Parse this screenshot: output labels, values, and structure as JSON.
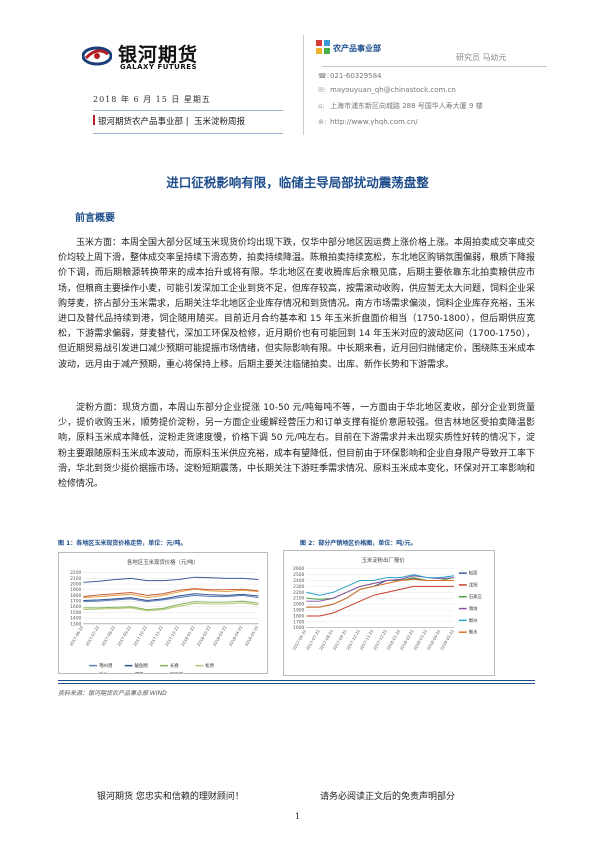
{
  "header": {
    "brand_cn": "银河期货",
    "brand_en": "GALAXY FUTURES",
    "date": "2018 年 6 月 15 日 星期五",
    "department": "银河期货农产品事业部",
    "report_name": "玉米淀粉周报"
  },
  "contact": {
    "unit_name": "农产品事业部",
    "researcher": "研究员  马幼元",
    "phone": "021-60329584",
    "email": "mayouyuan_qh@chinastock.com.cn",
    "address": "上海市浦东新区向城路 288 号国华人寿大厦 9 楼",
    "website": "http://www.yhqh.com.cn/"
  },
  "main": {
    "title": "进口征税影响有限，临储主导局部扰动震荡盘整",
    "section_heading": "前言概要",
    "paragraph1": "玉米方面：本周全国大部分区域玉米现货价均出现下跌，仅华中部分地区因运费上涨价格上涨。本周拍卖成交率成交价均较上周下滑，整体成交率呈持续下滑态势，拍卖持续降温。陈粮拍卖持续宽松，东北地区购销氛围偏弱，粮质下降报价下调，而后期粮源转换带来的成本抬升或将有限。华北地区在麦收腾库后余粮见底，后期主要依靠东北拍卖粮供应市场，但粮商主要操作小麦，可能引发深加工企业到货不足，但库存较高，按需滚动收购，供应暂无太大问题，饲料企业采购芽麦，挤占部分玉米需求，后期关注华北地区企业库存情况和到货情况。南方市场需求偏淡，饲料企业库存充裕，玉米进口及替代品持续到港，饲企随用随买。目前近月合约基本和 15 年玉米折盘面价相当（1750-1800），但后期供应宽松，下游需求偏弱，芽麦替代，深加工环保及检修，近月期价也有可能回到 14 年玉米对应的波动区间（1700-1750），但近期贸易战引发进口减少预期可能提振市场情绪，但实际影响有限。中长期来看，近月回归抛储定价，围绕陈玉米成本波动，远月由于减产预期，重心将保持上移。后期主要关注临储拍卖、出库、新作长势和下游需求。",
    "paragraph2": "淀粉方面：现货方面，本周山东部分企业提涨 10-50 元/吨每吨不等，一方面由于华北地区麦收，部分企业到货量少，提价收购玉米，顺势提价淀粉，另一方面企业缓解经营压力和订单支撑有挺价意愿较强。但吉林地区受拍卖降温影响，原料玉米成本降低，淀粉走货速度慢，价格下调 50 元/吨左右。目前在下游需求并未出现实质性好转的情况下，淀粉主要跟随原料玉米成本波动，而原料玉米供应充裕，成本有望降低，但目前由于环保影响和企业自身限产导致开工率下滑，华北到货少挺价据振市场，淀粉短期震荡，中长期关注下游旺季需求情况、原料玉米成本变化，环保对开工率影响和检修情况。"
  },
  "figures": {
    "fig1_caption": "图 1：各地区玉米现货价格走势，单位：元/吨。",
    "fig2_caption": "图 2：部分产销地区价格图，单位：吨/元。",
    "source": "资料来源：银河期货农产品事业部 WIND"
  },
  "chart_data": [
    {
      "type": "line",
      "title": "各地区玉米现货价格（元/吨）",
      "x": [
        "2017-06-22",
        "2017-07-22",
        "2017-08-22",
        "2017-09-22",
        "2017-10-22",
        "2017-11-22",
        "2017-12-22",
        "2018-01-22",
        "2018-02-22",
        "2018-03-22",
        "2018-04-22",
        "2018-05-22"
      ],
      "ylim": [
        1300,
        2200
      ],
      "yticks": [
        1300,
        1400,
        1500,
        1600,
        1700,
        1800,
        1900,
        2000,
        2100,
        2200
      ],
      "series": [
        {
          "name": "锦州港",
          "color": "#5b7fb9",
          "values": [
            1690,
            1700,
            1720,
            1740,
            1690,
            1720,
            1760,
            1800,
            1780,
            1780,
            1800,
            1760
          ]
        },
        {
          "name": "鲅鱼圈",
          "color": "#2f4f8f",
          "values": [
            1710,
            1720,
            1740,
            1760,
            1710,
            1740,
            1790,
            1830,
            1810,
            1800,
            1820,
            1790
          ]
        },
        {
          "name": "长春",
          "color": "#7fb05a",
          "values": [
            1580,
            1580,
            1590,
            1600,
            1550,
            1570,
            1640,
            1690,
            1680,
            1680,
            1700,
            1660
          ]
        },
        {
          "name": "松原",
          "color": "#b4c972",
          "values": [
            1550,
            1560,
            1570,
            1580,
            1530,
            1550,
            1610,
            1660,
            1650,
            1650,
            1670,
            1630
          ]
        },
        {
          "name": "潍坊",
          "color": "#e0a040",
          "values": [
            1760,
            1780,
            1800,
            1820,
            1760,
            1800,
            1860,
            1910,
            1880,
            1870,
            1890,
            1870
          ]
        },
        {
          "name": "成都",
          "color": "#3a5a9a",
          "values": [
            2030,
            2050,
            2080,
            2100,
            2060,
            2060,
            2080,
            2120,
            2110,
            2100,
            2100,
            2080
          ]
        },
        {
          "name": "蛇口港",
          "color": "#c85a3a",
          "values": [
            1780,
            1810,
            1830,
            1850,
            1800,
            1830,
            1890,
            1920,
            1900,
            1900,
            1910,
            1880
          ]
        }
      ]
    },
    {
      "type": "line",
      "title": "玉米淀粉出厂报价",
      "x": [
        "2017-06-22",
        "2017-07-22",
        "2017-08-22",
        "2017-09-22",
        "2017-10-22",
        "2017-11-22",
        "2017-12-22",
        "2018-01-22",
        "2018-02-22",
        "2018-03-22",
        "2018-04-22",
        "2018-05-22"
      ],
      "ylim": [
        1600,
        2600
      ],
      "yticks": [
        1600,
        1700,
        1800,
        1900,
        2000,
        2100,
        2200,
        2300,
        2400,
        2500,
        2600
      ],
      "series": [
        {
          "name": "松原",
          "color": "#3a5a9a",
          "values": [
            1950,
            1950,
            2000,
            2100,
            2250,
            2300,
            2400,
            2400,
            2430,
            2400,
            2400,
            2400
          ]
        },
        {
          "name": "沈阳",
          "color": "#c83a2a",
          "values": [
            1800,
            1800,
            1850,
            1950,
            2050,
            2150,
            2200,
            2250,
            2300,
            2300,
            2300,
            2300
          ]
        },
        {
          "name": "石家庄",
          "color": "#4aa04a",
          "values": [
            2100,
            2080,
            2100,
            2200,
            2300,
            2350,
            2400,
            2400,
            2450,
            2400,
            2400,
            2450
          ]
        },
        {
          "name": "潍坊",
          "color": "#8a4fa0",
          "values": [
            2050,
            2050,
            2100,
            2200,
            2300,
            2350,
            2400,
            2420,
            2480,
            2450,
            2430,
            2450
          ]
        },
        {
          "name": "邯州",
          "color": "#2aa0c8",
          "values": [
            2200,
            2150,
            2200,
            2300,
            2400,
            2400,
            2450,
            2450,
            2500,
            2450,
            2450,
            2480
          ]
        },
        {
          "name": "衡水",
          "color": "#e07020",
          "values": [
            1950,
            1950,
            2000,
            2100,
            2250,
            2300,
            2350,
            2400,
            2420,
            2400,
            2400,
            2400
          ]
        }
      ]
    }
  ],
  "footer": {
    "slogan_left": "银河期货  您忠实和信赖的理财顾问！",
    "slogan_right": "请务必阅读正文后的免责声明部分",
    "page_number": "1"
  }
}
